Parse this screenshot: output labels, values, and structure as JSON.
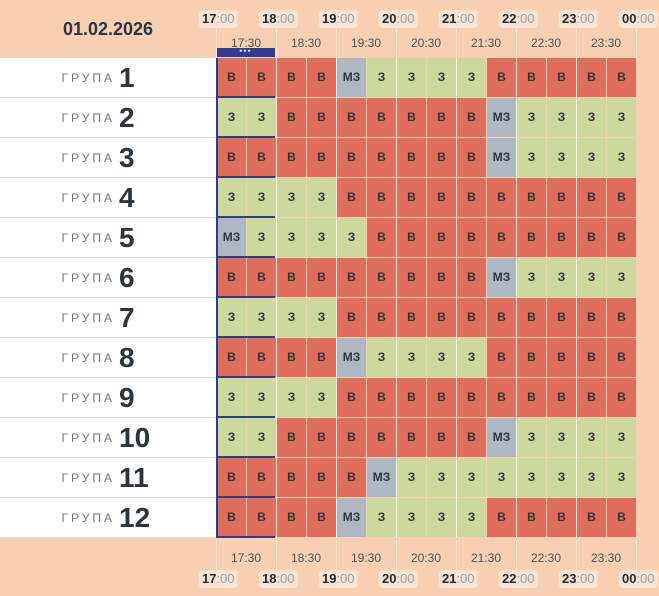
{
  "date": "01.02.2026",
  "row_label": "ГРУПА",
  "hour_labels": [
    {
      "h": "17",
      "m": ":00"
    },
    {
      "h": "18",
      "m": ":00"
    },
    {
      "h": "19",
      "m": ":00"
    },
    {
      "h": "20",
      "m": ":00"
    },
    {
      "h": "21",
      "m": ":00"
    },
    {
      "h": "22",
      "m": ":00"
    },
    {
      "h": "23",
      "m": ":00"
    },
    {
      "h": "00",
      "m": ":00"
    }
  ],
  "half_labels": [
    "17:30",
    "18:30",
    "19:30",
    "20:30",
    "21:30",
    "22:30",
    "23:30"
  ],
  "current_marker": "•••",
  "status_text": {
    "v": "В",
    "z": "З",
    "mz": "МЗ"
  },
  "groups": [
    {
      "number": "1",
      "slots": [
        "v",
        "v",
        "v",
        "v",
        "mz",
        "z",
        "z",
        "z",
        "z",
        "v",
        "v",
        "v",
        "v",
        "v"
      ]
    },
    {
      "number": "2",
      "slots": [
        "z",
        "z",
        "v",
        "v",
        "v",
        "v",
        "v",
        "v",
        "v",
        "mz",
        "z",
        "z",
        "z",
        "z"
      ]
    },
    {
      "number": "3",
      "slots": [
        "v",
        "v",
        "v",
        "v",
        "v",
        "v",
        "v",
        "v",
        "v",
        "mz",
        "z",
        "z",
        "z",
        "z"
      ]
    },
    {
      "number": "4",
      "slots": [
        "z",
        "z",
        "z",
        "z",
        "v",
        "v",
        "v",
        "v",
        "v",
        "v",
        "v",
        "v",
        "v",
        "v"
      ]
    },
    {
      "number": "5",
      "slots": [
        "mz",
        "z",
        "z",
        "z",
        "z",
        "v",
        "v",
        "v",
        "v",
        "v",
        "v",
        "v",
        "v",
        "v"
      ]
    },
    {
      "number": "6",
      "slots": [
        "v",
        "v",
        "v",
        "v",
        "v",
        "v",
        "v",
        "v",
        "v",
        "mz",
        "z",
        "z",
        "z",
        "z"
      ]
    },
    {
      "number": "7",
      "slots": [
        "z",
        "z",
        "z",
        "z",
        "v",
        "v",
        "v",
        "v",
        "v",
        "v",
        "v",
        "v",
        "v",
        "v"
      ]
    },
    {
      "number": "8",
      "slots": [
        "v",
        "v",
        "v",
        "v",
        "mz",
        "z",
        "z",
        "z",
        "z",
        "v",
        "v",
        "v",
        "v",
        "v"
      ]
    },
    {
      "number": "9",
      "slots": [
        "z",
        "z",
        "z",
        "z",
        "v",
        "v",
        "v",
        "v",
        "v",
        "v",
        "v",
        "v",
        "v",
        "v"
      ]
    },
    {
      "number": "10",
      "slots": [
        "z",
        "z",
        "v",
        "v",
        "v",
        "v",
        "v",
        "v",
        "v",
        "mz",
        "z",
        "z",
        "z",
        "z"
      ]
    },
    {
      "number": "11",
      "slots": [
        "v",
        "v",
        "v",
        "v",
        "v",
        "mz",
        "z",
        "z",
        "z",
        "z",
        "z",
        "z",
        "z",
        "z"
      ]
    },
    {
      "number": "12",
      "slots": [
        "v",
        "v",
        "v",
        "v",
        "mz",
        "z",
        "z",
        "z",
        "z",
        "v",
        "v",
        "v",
        "v",
        "v"
      ]
    }
  ]
}
